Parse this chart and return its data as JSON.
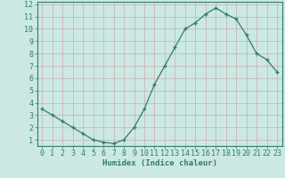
{
  "x": [
    0,
    1,
    2,
    3,
    4,
    5,
    6,
    7,
    8,
    9,
    10,
    11,
    12,
    13,
    14,
    15,
    16,
    17,
    18,
    19,
    20,
    21,
    22,
    23
  ],
  "y": [
    3.5,
    3.0,
    2.5,
    2.0,
    1.5,
    1.0,
    0.8,
    0.7,
    1.0,
    2.0,
    3.5,
    5.5,
    7.0,
    8.5,
    10.0,
    10.5,
    11.2,
    11.7,
    11.2,
    10.8,
    9.5,
    8.0,
    7.5,
    6.5
  ],
  "line_color": "#2e7d6e",
  "marker": "+",
  "marker_size": 3.5,
  "marker_lw": 1.0,
  "line_width": 0.9,
  "bg_color": "#cce8e4",
  "grid_color": "#b8d4d0",
  "axis_color": "#2e7d6e",
  "xlabel": "Humidex (Indice chaleur)",
  "xlim_min": -0.5,
  "xlim_max": 23.5,
  "ylim_min": 0.5,
  "ylim_max": 12.2,
  "xticks": [
    0,
    1,
    2,
    3,
    4,
    5,
    6,
    7,
    8,
    9,
    10,
    11,
    12,
    13,
    14,
    15,
    16,
    17,
    18,
    19,
    20,
    21,
    22,
    23
  ],
  "yticks": [
    1,
    2,
    3,
    4,
    5,
    6,
    7,
    8,
    9,
    10,
    11,
    12
  ],
  "xlabel_fontsize": 6.5,
  "tick_fontsize": 6.0,
  "label_color": "#2e7d6e"
}
